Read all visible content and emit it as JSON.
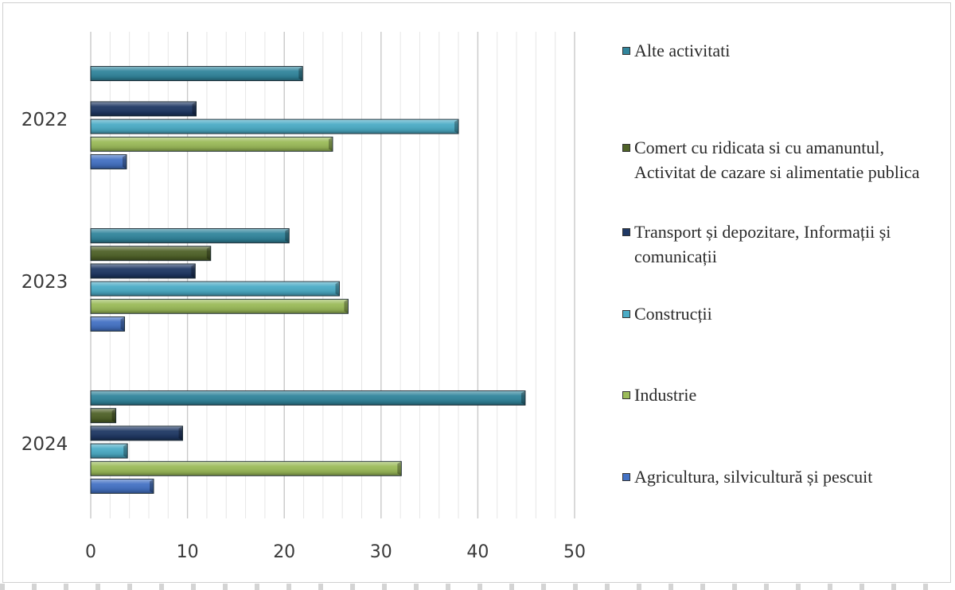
{
  "chart_data": {
    "type": "bar",
    "orientation": "horizontal",
    "title": "",
    "xlabel": "",
    "ylabel": "",
    "xlim": [
      0,
      50
    ],
    "x_ticks": [
      "0",
      "10",
      "20",
      "30",
      "40",
      "50"
    ],
    "categories": [
      "2022",
      "2023",
      "2024"
    ],
    "grid": true,
    "legend_position": "right",
    "series": [
      {
        "name": "Agricultura, silvicultură și pescuit",
        "color": "#4472C4",
        "values": [
          3.7,
          3.5,
          6.5
        ]
      },
      {
        "name": "Industrie",
        "color": "#9BBB59",
        "values": [
          25,
          26.6,
          32.1
        ]
      },
      {
        "name": "Construcții",
        "color": "#4BACC6",
        "values": [
          38,
          25.7,
          3.8
        ]
      },
      {
        "name": "Transport și depozitare, Informații și comunicații",
        "color": "#1F3864",
        "values": [
          10.9,
          10.8,
          9.5
        ]
      },
      {
        "name": "Comert cu ridicata si cu amanuntul, Activitat de cazare si alimentatie publica",
        "color": "#4F6228",
        "values": [
          null,
          12.4,
          2.6
        ]
      },
      {
        "name": "Alte activitati",
        "color": "#31859C",
        "values": [
          21.9,
          20.5,
          44.9
        ]
      }
    ]
  }
}
